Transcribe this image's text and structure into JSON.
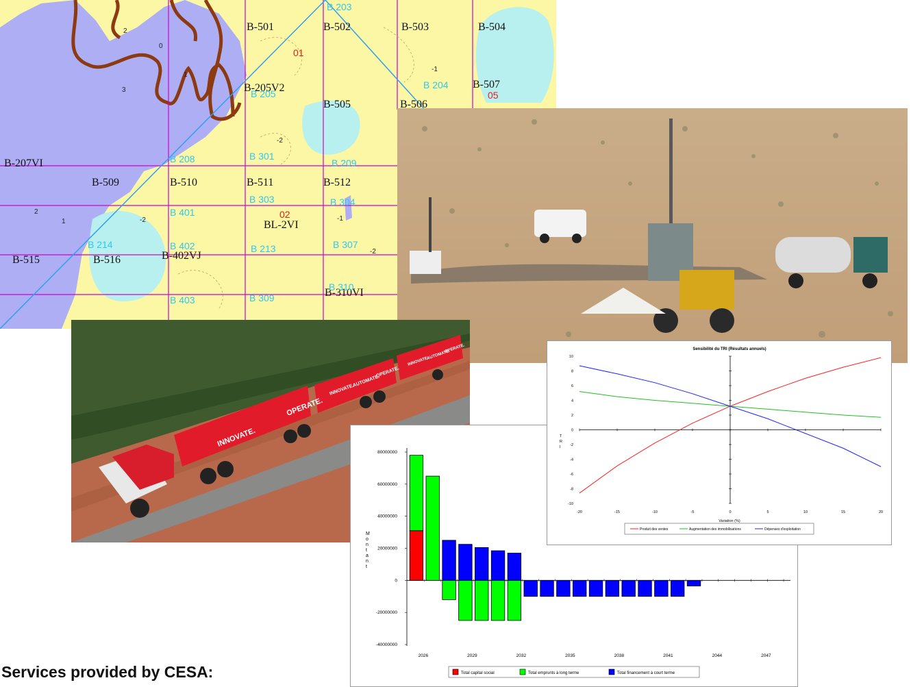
{
  "caption": "Services provided by CESA:",
  "map": {
    "drill_labels": [
      {
        "id": "b501",
        "text": "B-501"
      },
      {
        "id": "b502",
        "text": "B-502"
      },
      {
        "id": "b503",
        "text": "B-503"
      },
      {
        "id": "b504",
        "text": "B-504"
      },
      {
        "id": "b205v2",
        "text": "B-205V2"
      },
      {
        "id": "b505",
        "text": "B-505"
      },
      {
        "id": "b506",
        "text": "B-506"
      },
      {
        "id": "b507",
        "text": "B-507"
      },
      {
        "id": "b207v1",
        "text": "B-207VI"
      },
      {
        "id": "b509",
        "text": "B-509"
      },
      {
        "id": "b510",
        "text": "B-510"
      },
      {
        "id": "b511",
        "text": "B-511"
      },
      {
        "id": "b512",
        "text": "B-512"
      },
      {
        "id": "bl2v1",
        "text": "BL-2VI"
      },
      {
        "id": "b515",
        "text": "B-515"
      },
      {
        "id": "b516",
        "text": "B-516"
      },
      {
        "id": "b402vj",
        "text": "B-402VJ"
      },
      {
        "id": "b310v1",
        "text": "B-310VI"
      }
    ],
    "block_labels": [
      "B 203",
      "B 204",
      "B 205",
      "B 208",
      "B 301",
      "B 209",
      "B 303",
      "B 304",
      "B 401",
      "B 402",
      "B 213",
      "B 307",
      "B 214",
      "B 403",
      "B 309",
      "B 310"
    ],
    "red_labels": [
      "01",
      "02",
      "05"
    ],
    "contour_labels": [
      "0",
      "1",
      "2",
      "3",
      "-2",
      "-1",
      "2",
      "1",
      "-2",
      "-1",
      "-2"
    ]
  },
  "truck": {
    "trailer_words": [
      "INNOVATE.",
      "AUTOMATE.",
      "OPERATE."
    ]
  },
  "tri_chart": {
    "chart_data": {
      "type": "line",
      "title": "Sensibilité du TRI (Résultats annuels)",
      "xlabel": "Variation (%)",
      "ylabel": "TRI",
      "xlim": [
        -20,
        20
      ],
      "ylim": [
        -10,
        10
      ],
      "x_ticks": [
        -20,
        -15,
        -10,
        -5,
        0,
        5,
        10,
        15,
        20
      ],
      "y_ticks": [
        10,
        8,
        6,
        4,
        2,
        0,
        -2,
        -4,
        -6,
        -8,
        -10
      ],
      "x": [
        -20,
        -15,
        -10,
        -5,
        0,
        5,
        10,
        15,
        20
      ],
      "series": [
        {
          "name": "Produit des ventes",
          "color": "#ff2020",
          "values": [
            -8.6,
            -4.9,
            -1.8,
            0.9,
            3.2,
            5.2,
            7.0,
            8.5,
            9.8
          ]
        },
        {
          "name": "Augmentation des immobilisations",
          "color": "#20c020",
          "values": [
            5.2,
            4.5,
            4.0,
            3.6,
            3.2,
            2.8,
            2.4,
            2.0,
            1.7
          ]
        },
        {
          "name": "Dépenses d'exploitation",
          "color": "#2020ff",
          "values": [
            8.7,
            7.6,
            6.4,
            4.9,
            3.2,
            1.5,
            -0.5,
            -2.5,
            -5.0
          ]
        }
      ],
      "legend": "bottom"
    }
  },
  "finance_chart": {
    "chart_data": {
      "type": "bar",
      "stacked": true,
      "ylabel": "Montant",
      "ylim": [
        -40000000,
        80000000
      ],
      "y_ticks": [
        80000000,
        60000000,
        40000000,
        20000000,
        0,
        -20000000,
        -40000000
      ],
      "x_tick_labels": [
        "2026",
        "2029",
        "2032",
        "2035",
        "2038",
        "2041",
        "2044",
        "2047"
      ],
      "categories": [
        "2026",
        "2027",
        "2028",
        "2029",
        "2030",
        "2031",
        "2032",
        "2033",
        "2034",
        "2035",
        "2036",
        "2037",
        "2038",
        "2039",
        "2040",
        "2041",
        "2042",
        "2043",
        "2044",
        "2045",
        "2046",
        "2047"
      ],
      "series": [
        {
          "name": "Total capital social",
          "color": "#ff0000",
          "values": [
            31000000,
            0,
            0,
            0,
            0,
            0,
            0,
            0,
            0,
            0,
            0,
            0,
            0,
            0,
            0,
            0,
            0,
            0,
            0,
            0,
            0,
            0
          ]
        },
        {
          "name": "Total emprunts à long terme",
          "color": "#00ff00",
          "values": [
            47000000,
            65000000,
            -12000000,
            -25000000,
            -25000000,
            -25000000,
            -25000000,
            0,
            0,
            0,
            0,
            0,
            0,
            0,
            0,
            0,
            0,
            0,
            0,
            0,
            0,
            0
          ]
        },
        {
          "name": "Total financement à court terme",
          "color": "#0000ff",
          "values": [
            0,
            0,
            25000000,
            22500000,
            20500000,
            18500000,
            17000000,
            -10000000,
            -10000000,
            -10000000,
            -10000000,
            -10000000,
            -10000000,
            -10000000,
            -10000000,
            -10000000,
            -10000000,
            -3500000,
            0,
            0,
            0,
            0
          ]
        }
      ],
      "legend": "bottom"
    }
  }
}
